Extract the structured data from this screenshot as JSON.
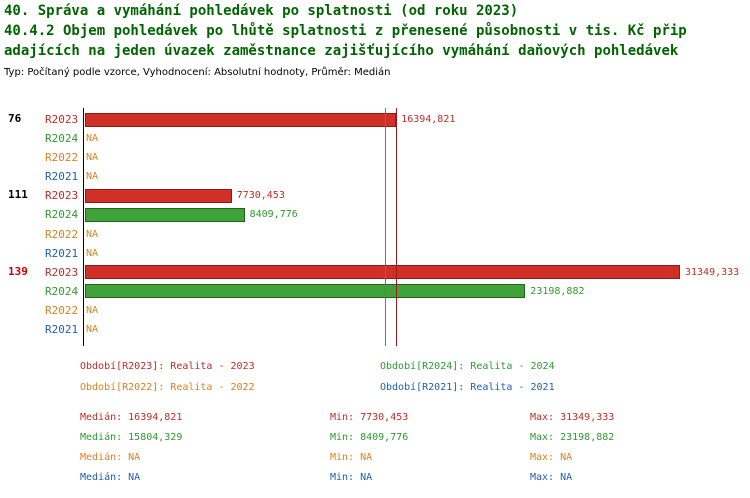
{
  "header": {
    "title_line1": "40. Správa a vymáhání pohledávek po splatnosti (od roku 2023)",
    "title_line2": "40.4.2 Objem pohledávek po lhůtě splatnosti z přenesené působnosti v tis. Kč přip",
    "title_line3": "adajících na jeden úvazek zaměstnance zajišťujícího vymáhání daňových pohledávek",
    "subtitle": "Typ: Počítaný podle vzorce, Vyhodnocení: Absolutní hodnoty, Průměr: Medián"
  },
  "colors": {
    "title": "#006400",
    "axis": "#000000",
    "r2023": "#BE2D26",
    "r2024": "#2E9B2E",
    "r2022": "#D8821E",
    "r2021": "#2060B0",
    "na": "#D8821E",
    "id_emphasis": "#CC0000",
    "bar_r2023": "#D03028",
    "bar_r2023_border": "#8E1B15",
    "bar_r2024": "#3FA33A",
    "bar_r2024_border": "#1F661C",
    "median_r2023": "#9B1C1C",
    "median_r2024": "#2FA12F"
  },
  "chart_data": {
    "type": "bar",
    "orientation": "horizontal",
    "unit": "tis. Kč",
    "categories": [
      "76",
      "111",
      "139"
    ],
    "highlighted_category": "139",
    "series_order": [
      "R2023",
      "R2024",
      "R2022",
      "R2021"
    ],
    "series": [
      {
        "name": "R2023",
        "values": [
          16394.821,
          7730.453,
          31349.333
        ],
        "value_labels": [
          "16394,821",
          "7730,453",
          "31349,333"
        ]
      },
      {
        "name": "R2024",
        "values": [
          null,
          8409.776,
          23198.882
        ],
        "value_labels": [
          "NA",
          "8409,776",
          "23198,882"
        ]
      },
      {
        "name": "R2022",
        "values": [
          null,
          null,
          null
        ],
        "value_labels": [
          "NA",
          "NA",
          "NA"
        ]
      },
      {
        "name": "R2021",
        "values": [
          null,
          null,
          null
        ],
        "value_labels": [
          "NA",
          "NA",
          "NA"
        ]
      }
    ],
    "xlim": [
      0,
      31349.333
    ],
    "median_lines": [
      {
        "series": "R2023",
        "value": 16394.821
      },
      {
        "series": "R2024",
        "value": 15804.329
      }
    ],
    "grid": false,
    "legend_position": "bottom"
  },
  "legend": {
    "items": [
      {
        "series": "R2023",
        "label": "Období[R2023]: Realita - 2023"
      },
      {
        "series": "R2024",
        "label": "Období[R2024]: Realita - 2024"
      },
      {
        "series": "R2022",
        "label": "Období[R2022]: Realita - 2022"
      },
      {
        "series": "R2021",
        "label": "Období[R2021]: Realita - 2021"
      }
    ]
  },
  "stats": {
    "rows": [
      {
        "series": "R2023",
        "median": "Medián: 16394,821",
        "min": "Min: 7730,453",
        "max": "Max: 31349,333"
      },
      {
        "series": "R2024",
        "median": "Medián: 15804,329",
        "min": "Min: 8409,776",
        "max": "Max: 23198,882"
      },
      {
        "series": "R2022",
        "median": "Medián: NA",
        "min": "Min: NA",
        "max": "Max: NA"
      },
      {
        "series": "R2021",
        "median": "Medián: NA",
        "min": "Min: NA",
        "max": "Max: NA"
      }
    ]
  }
}
